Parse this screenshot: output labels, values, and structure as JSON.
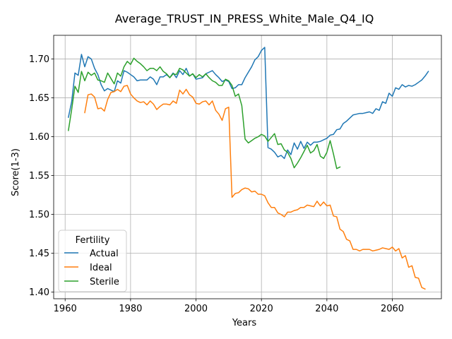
{
  "chart_data": {
    "type": "line",
    "title": "Average_TRUST_IN_PRESS_White_Male_Q4_IQ",
    "xlabel": "Years",
    "ylabel": "Score(1-3)",
    "xlim": [
      1956.5,
      2075
    ],
    "ylim": [
      1.3915,
      1.7305
    ],
    "x_ticks": [
      1960,
      1980,
      2000,
      2020,
      2040,
      2060
    ],
    "y_ticks": [
      1.4,
      1.45,
      1.5,
      1.55,
      1.6,
      1.65,
      1.7
    ],
    "y_tick_labels": [
      "1.40",
      "1.45",
      "1.50",
      "1.55",
      "1.60",
      "1.65",
      "1.70"
    ],
    "grid": true,
    "legend": {
      "title": "Fertility",
      "placement": "lower-left"
    },
    "series": [
      {
        "name": "Actual",
        "color": "#1f77b4",
        "points": [
          [
            1961,
            1.625
          ],
          [
            1962,
            1.645
          ],
          [
            1963,
            1.682
          ],
          [
            1964,
            1.679
          ],
          [
            1965,
            1.706
          ],
          [
            1966,
            1.69
          ],
          [
            1967,
            1.703
          ],
          [
            1968,
            1.7
          ],
          [
            1969,
            1.688
          ],
          [
            1970,
            1.68
          ],
          [
            1971,
            1.667
          ],
          [
            1972,
            1.659
          ],
          [
            1973,
            1.662
          ],
          [
            1974,
            1.66
          ],
          [
            1975,
            1.658
          ],
          [
            1976,
            1.672
          ],
          [
            1977,
            1.669
          ],
          [
            1978,
            1.685
          ],
          [
            1979,
            1.683
          ],
          [
            1980,
            1.68
          ],
          [
            1981,
            1.677
          ],
          [
            1982,
            1.672
          ],
          [
            1983,
            1.673
          ],
          [
            1984,
            1.673
          ],
          [
            1985,
            1.673
          ],
          [
            1986,
            1.677
          ],
          [
            1987,
            1.674
          ],
          [
            1988,
            1.667
          ],
          [
            1989,
            1.677
          ],
          [
            1990,
            1.677
          ],
          [
            1991,
            1.68
          ],
          [
            1992,
            1.676
          ],
          [
            1993,
            1.682
          ],
          [
            1994,
            1.676
          ],
          [
            1995,
            1.685
          ],
          [
            1996,
            1.68
          ],
          [
            1997,
            1.688
          ],
          [
            1998,
            1.678
          ],
          [
            1999,
            1.681
          ],
          [
            2000,
            1.674
          ],
          [
            2001,
            1.675
          ],
          [
            2002,
            1.676
          ],
          [
            2003,
            1.681
          ],
          [
            2004,
            1.683
          ],
          [
            2005,
            1.685
          ],
          [
            2006,
            1.68
          ],
          [
            2007,
            1.676
          ],
          [
            2008,
            1.671
          ],
          [
            2009,
            1.673
          ],
          [
            2010,
            1.671
          ],
          [
            2011,
            1.662
          ],
          [
            2012,
            1.663
          ],
          [
            2013,
            1.667
          ],
          [
            2014,
            1.667
          ],
          [
            2015,
            1.676
          ],
          [
            2016,
            1.683
          ],
          [
            2017,
            1.69
          ],
          [
            2018,
            1.699
          ],
          [
            2019,
            1.703
          ],
          [
            2020,
            1.711
          ],
          [
            2021,
            1.715
          ],
          [
            2022,
            1.586
          ],
          [
            2023,
            1.584
          ],
          [
            2024,
            1.58
          ],
          [
            2025,
            1.574
          ],
          [
            2026,
            1.576
          ],
          [
            2027,
            1.572
          ],
          [
            2028,
            1.583
          ],
          [
            2029,
            1.577
          ],
          [
            2030,
            1.592
          ],
          [
            2031,
            1.584
          ],
          [
            2032,
            1.594
          ],
          [
            2033,
            1.585
          ],
          [
            2034,
            1.593
          ],
          [
            2035,
            1.589
          ],
          [
            2036,
            1.593
          ],
          [
            2037,
            1.593
          ],
          [
            2038,
            1.594
          ],
          [
            2039,
            1.596
          ],
          [
            2040,
            1.598
          ],
          [
            2041,
            1.602
          ],
          [
            2042,
            1.603
          ],
          [
            2043,
            1.609
          ],
          [
            2044,
            1.61
          ],
          [
            2045,
            1.617
          ],
          [
            2046,
            1.62
          ],
          [
            2047,
            1.624
          ],
          [
            2048,
            1.628
          ],
          [
            2049,
            1.629
          ],
          [
            2050,
            1.63
          ],
          [
            2051,
            1.63
          ],
          [
            2052,
            1.631
          ],
          [
            2053,
            1.632
          ],
          [
            2054,
            1.63
          ],
          [
            2055,
            1.636
          ],
          [
            2056,
            1.634
          ],
          [
            2057,
            1.645
          ],
          [
            2058,
            1.643
          ],
          [
            2059,
            1.656
          ],
          [
            2060,
            1.652
          ],
          [
            2061,
            1.663
          ],
          [
            2062,
            1.661
          ],
          [
            2063,
            1.667
          ],
          [
            2064,
            1.664
          ],
          [
            2065,
            1.666
          ],
          [
            2066,
            1.665
          ],
          [
            2067,
            1.667
          ],
          [
            2068,
            1.67
          ],
          [
            2069,
            1.673
          ],
          [
            2070,
            1.678
          ],
          [
            2071,
            1.684
          ]
        ]
      },
      {
        "name": "Ideal",
        "color": "#ff7f0e",
        "points": [
          [
            1966,
            1.631
          ],
          [
            1967,
            1.654
          ],
          [
            1968,
            1.655
          ],
          [
            1969,
            1.651
          ],
          [
            1970,
            1.636
          ],
          [
            1971,
            1.637
          ],
          [
            1972,
            1.633
          ],
          [
            1973,
            1.648
          ],
          [
            1974,
            1.657
          ],
          [
            1975,
            1.658
          ],
          [
            1976,
            1.661
          ],
          [
            1977,
            1.658
          ],
          [
            1978,
            1.665
          ],
          [
            1979,
            1.666
          ],
          [
            1980,
            1.655
          ],
          [
            1981,
            1.65
          ],
          [
            1982,
            1.646
          ],
          [
            1983,
            1.644
          ],
          [
            1984,
            1.645
          ],
          [
            1985,
            1.641
          ],
          [
            1986,
            1.646
          ],
          [
            1987,
            1.642
          ],
          [
            1988,
            1.635
          ],
          [
            1989,
            1.639
          ],
          [
            1990,
            1.642
          ],
          [
            1991,
            1.642
          ],
          [
            1992,
            1.641
          ],
          [
            1993,
            1.646
          ],
          [
            1994,
            1.643
          ],
          [
            1995,
            1.66
          ],
          [
            1996,
            1.655
          ],
          [
            1997,
            1.661
          ],
          [
            1998,
            1.654
          ],
          [
            1999,
            1.651
          ],
          [
            2000,
            1.643
          ],
          [
            2001,
            1.642
          ],
          [
            2002,
            1.645
          ],
          [
            2003,
            1.646
          ],
          [
            2004,
            1.641
          ],
          [
            2005,
            1.646
          ],
          [
            2006,
            1.634
          ],
          [
            2007,
            1.629
          ],
          [
            2008,
            1.621
          ],
          [
            2009,
            1.636
          ],
          [
            2010,
            1.638
          ],
          [
            2011,
            1.522
          ],
          [
            2012,
            1.527
          ],
          [
            2013,
            1.528
          ],
          [
            2014,
            1.532
          ],
          [
            2015,
            1.534
          ],
          [
            2016,
            1.533
          ],
          [
            2017,
            1.529
          ],
          [
            2018,
            1.53
          ],
          [
            2019,
            1.526
          ],
          [
            2020,
            1.526
          ],
          [
            2021,
            1.524
          ],
          [
            2022,
            1.515
          ],
          [
            2023,
            1.509
          ],
          [
            2024,
            1.509
          ],
          [
            2025,
            1.502
          ],
          [
            2026,
            1.5
          ],
          [
            2027,
            1.497
          ],
          [
            2028,
            1.503
          ],
          [
            2029,
            1.503
          ],
          [
            2030,
            1.505
          ],
          [
            2031,
            1.506
          ],
          [
            2032,
            1.509
          ],
          [
            2033,
            1.509
          ],
          [
            2034,
            1.512
          ],
          [
            2035,
            1.511
          ],
          [
            2036,
            1.51
          ],
          [
            2037,
            1.517
          ],
          [
            2038,
            1.511
          ],
          [
            2039,
            1.516
          ],
          [
            2040,
            1.511
          ],
          [
            2041,
            1.512
          ],
          [
            2042,
            1.498
          ],
          [
            2043,
            1.497
          ],
          [
            2044,
            1.481
          ],
          [
            2045,
            1.478
          ],
          [
            2046,
            1.468
          ],
          [
            2047,
            1.466
          ],
          [
            2048,
            1.455
          ],
          [
            2049,
            1.455
          ],
          [
            2050,
            1.453
          ],
          [
            2051,
            1.455
          ],
          [
            2052,
            1.455
          ],
          [
            2053,
            1.455
          ],
          [
            2054,
            1.453
          ],
          [
            2055,
            1.454
          ],
          [
            2056,
            1.455
          ],
          [
            2057,
            1.457
          ],
          [
            2058,
            1.456
          ],
          [
            2059,
            1.455
          ],
          [
            2060,
            1.458
          ],
          [
            2061,
            1.453
          ],
          [
            2062,
            1.456
          ],
          [
            2063,
            1.444
          ],
          [
            2064,
            1.447
          ],
          [
            2065,
            1.432
          ],
          [
            2066,
            1.434
          ],
          [
            2067,
            1.419
          ],
          [
            2068,
            1.418
          ],
          [
            2069,
            1.406
          ],
          [
            2070,
            1.404
          ]
        ]
      },
      {
        "name": "Sterile",
        "color": "#2ca02c",
        "points": [
          [
            1961,
            1.608
          ],
          [
            1962,
            1.635
          ],
          [
            1963,
            1.665
          ],
          [
            1964,
            1.657
          ],
          [
            1965,
            1.684
          ],
          [
            1966,
            1.672
          ],
          [
            1967,
            1.683
          ],
          [
            1968,
            1.679
          ],
          [
            1969,
            1.682
          ],
          [
            1970,
            1.673
          ],
          [
            1971,
            1.672
          ],
          [
            1972,
            1.67
          ],
          [
            1973,
            1.682
          ],
          [
            1974,
            1.675
          ],
          [
            1975,
            1.668
          ],
          [
            1976,
            1.682
          ],
          [
            1977,
            1.678
          ],
          [
            1978,
            1.69
          ],
          [
            1979,
            1.697
          ],
          [
            1980,
            1.693
          ],
          [
            1981,
            1.701
          ],
          [
            1982,
            1.697
          ],
          [
            1983,
            1.694
          ],
          [
            1984,
            1.69
          ],
          [
            1985,
            1.685
          ],
          [
            1986,
            1.688
          ],
          [
            1987,
            1.688
          ],
          [
            1988,
            1.685
          ],
          [
            1989,
            1.69
          ],
          [
            1990,
            1.684
          ],
          [
            1991,
            1.681
          ],
          [
            1992,
            1.676
          ],
          [
            1993,
            1.681
          ],
          [
            1994,
            1.68
          ],
          [
            1995,
            1.688
          ],
          [
            1996,
            1.686
          ],
          [
            1997,
            1.682
          ],
          [
            1998,
            1.678
          ],
          [
            1999,
            1.681
          ],
          [
            2000,
            1.676
          ],
          [
            2001,
            1.68
          ],
          [
            2002,
            1.677
          ],
          [
            2003,
            1.681
          ],
          [
            2004,
            1.676
          ],
          [
            2005,
            1.672
          ],
          [
            2006,
            1.67
          ],
          [
            2007,
            1.666
          ],
          [
            2008,
            1.666
          ],
          [
            2009,
            1.674
          ],
          [
            2010,
            1.672
          ],
          [
            2011,
            1.666
          ],
          [
            2012,
            1.652
          ],
          [
            2013,
            1.655
          ],
          [
            2014,
            1.64
          ],
          [
            2015,
            1.597
          ],
          [
            2016,
            1.592
          ],
          [
            2017,
            1.595
          ],
          [
            2018,
            1.598
          ],
          [
            2019,
            1.6
          ],
          [
            2020,
            1.603
          ],
          [
            2021,
            1.601
          ],
          [
            2022,
            1.594
          ],
          [
            2023,
            1.599
          ],
          [
            2024,
            1.604
          ],
          [
            2025,
            1.59
          ],
          [
            2026,
            1.591
          ],
          [
            2027,
            1.583
          ],
          [
            2028,
            1.58
          ],
          [
            2029,
            1.572
          ],
          [
            2030,
            1.56
          ],
          [
            2031,
            1.566
          ],
          [
            2032,
            1.573
          ],
          [
            2033,
            1.581
          ],
          [
            2034,
            1.589
          ],
          [
            2035,
            1.579
          ],
          [
            2036,
            1.582
          ],
          [
            2037,
            1.59
          ],
          [
            2038,
            1.575
          ],
          [
            2039,
            1.572
          ],
          [
            2040,
            1.58
          ],
          [
            2041,
            1.595
          ],
          [
            2042,
            1.578
          ],
          [
            2043,
            1.559
          ],
          [
            2044,
            1.561
          ]
        ]
      }
    ]
  }
}
